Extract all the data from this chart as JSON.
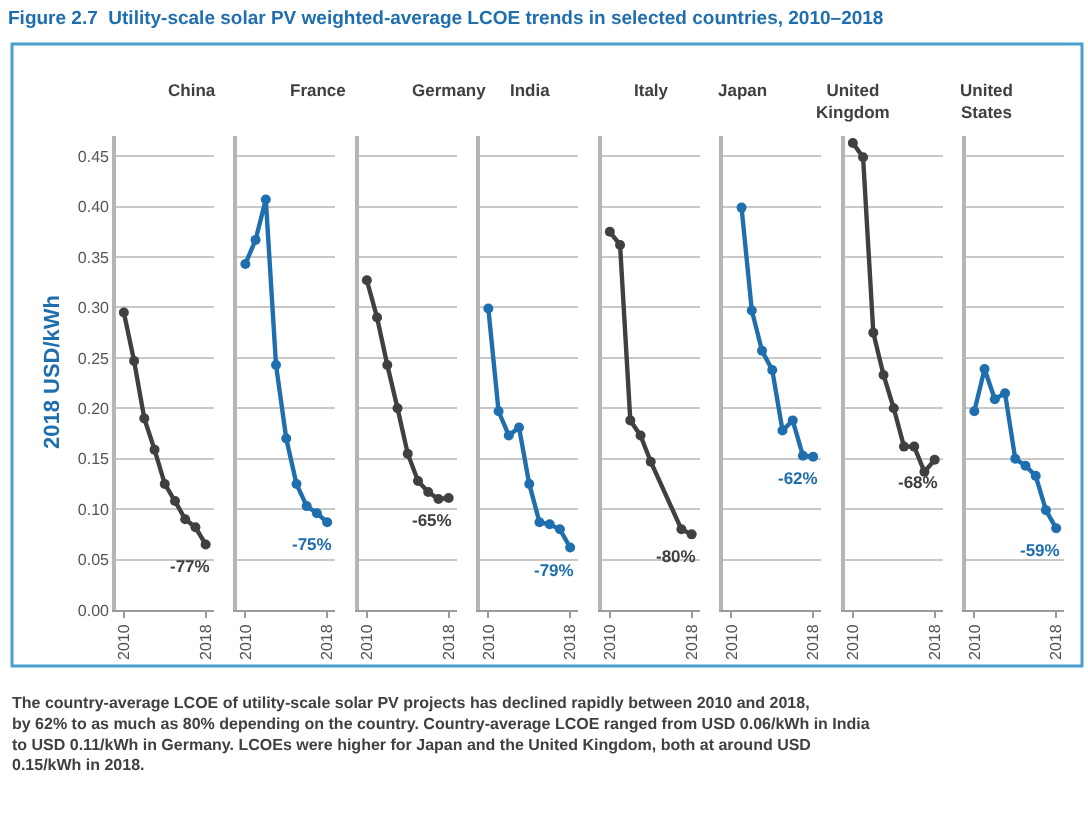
{
  "chart_data": [
    {
      "type": "line",
      "title": "China",
      "ylabel": "2018 USD/kWh",
      "x": [
        2010,
        2011,
        2012,
        2013,
        2014,
        2015,
        2016,
        2017,
        2018
      ],
      "xlim": [
        2009.2,
        2018.8
      ],
      "xticks": [
        2010,
        2018
      ],
      "ylim": [
        0,
        0.47
      ],
      "yticks": [
        {
          "value": 0,
          "label": "0.00"
        },
        {
          "value": 0.05,
          "label": "0.05"
        },
        {
          "value": 0.1,
          "label": "0.10"
        },
        {
          "value": 0.15,
          "label": "0.15"
        },
        {
          "value": 0.2,
          "label": "0.20"
        },
        {
          "value": 0.25,
          "label": "0.25"
        },
        {
          "value": 0.3,
          "label": "0.30"
        },
        {
          "value": 0.35,
          "label": "0.35"
        },
        {
          "value": 0.4,
          "label": "0.40"
        },
        {
          "value": 0.45,
          "label": "0.45"
        }
      ],
      "grid": "y",
      "marker": "circle",
      "series": [
        {
          "color": "#404040",
          "values": [
            0.295,
            0.247,
            0.19,
            0.159,
            0.125,
            0.108,
            0.09,
            0.082,
            0.065
          ]
        }
      ],
      "annotations": [
        "Figure 2.7  Utility-scale solar PV weighted-average LCOE trends in selected countries, 2010–2018",
        "The country-average LCOE of utility-scale solar PV projects has declined rapidly between 2010 and 2018, by 62% to as much as 80% depending on the country. Country-average LCOE ranged from USD 0.06/kWh in India to USD 0.11/kWh in Germany. LCOEs were higher for Japan and the United Kingdom, both at around USD 0.15/kWh in 2018.",
        "-77%"
      ]
    },
    {
      "type": "line",
      "title": "France",
      "x": [
        2010,
        2011,
        2012,
        2013,
        2014,
        2015,
        2016,
        2017,
        2018
      ],
      "xlim": [
        2009.2,
        2018.8
      ],
      "xticks": [
        2010,
        2018
      ],
      "ylim": [
        0,
        0.47
      ],
      "yticks": [
        0,
        0.05,
        0.1,
        0.15,
        0.2,
        0.25,
        0.3,
        0.35,
        0.4,
        0.45
      ],
      "tick_labels": "x",
      "grid": "y",
      "marker": "circle",
      "series": [
        {
          "color": "#1f6fae",
          "values": [
            0.343,
            0.367,
            0.407,
            0.243,
            0.17,
            0.125,
            0.103,
            0.096,
            0.087
          ]
        }
      ],
      "annotations": [
        "-75%"
      ]
    },
    {
      "type": "line",
      "title": "Germany",
      "x": [
        2010,
        2011,
        2012,
        2013,
        2014,
        2015,
        2016,
        2017,
        2018
      ],
      "xlim": [
        2009.2,
        2018.8
      ],
      "xticks": [
        2010,
        2018
      ],
      "ylim": [
        0,
        0.47
      ],
      "yticks": [
        0,
        0.05,
        0.1,
        0.15,
        0.2,
        0.25,
        0.3,
        0.35,
        0.4,
        0.45
      ],
      "tick_labels": "x",
      "grid": "y",
      "marker": "circle",
      "series": [
        {
          "color": "#404040",
          "values": [
            0.327,
            0.29,
            0.243,
            0.2,
            0.155,
            0.128,
            0.117,
            0.11,
            0.111
          ]
        }
      ],
      "annotations": [
        "-65%"
      ]
    },
    {
      "type": "line",
      "title": "India",
      "x": [
        2010,
        2011,
        2012,
        2013,
        2014,
        2015,
        2016,
        2017,
        2018
      ],
      "xlim": [
        2009.2,
        2018.8
      ],
      "xticks": [
        2010,
        2018
      ],
      "ylim": [
        0,
        0.47
      ],
      "yticks": [
        0,
        0.05,
        0.1,
        0.15,
        0.2,
        0.25,
        0.3,
        0.35,
        0.4,
        0.45
      ],
      "tick_labels": "x",
      "grid": "y",
      "marker": "circle",
      "series": [
        {
          "color": "#1f6fae",
          "values": [
            0.299,
            0.197,
            0.173,
            0.181,
            0.125,
            0.087,
            0.085,
            0.08,
            0.062
          ]
        }
      ],
      "annotations": [
        "-79%"
      ]
    },
    {
      "type": "line",
      "title": "Italy",
      "x": [
        2010,
        2011,
        2012,
        2013,
        2014,
        2017,
        2018
      ],
      "xlim": [
        2009.2,
        2018.8
      ],
      "xticks": [
        2010,
        2018
      ],
      "ylim": [
        0,
        0.47
      ],
      "yticks": [
        0,
        0.05,
        0.1,
        0.15,
        0.2,
        0.25,
        0.3,
        0.35,
        0.4,
        0.45
      ],
      "tick_labels": "x",
      "grid": "y",
      "marker": "circle",
      "series": [
        {
          "color": "#404040",
          "values": [
            0.375,
            0.362,
            0.188,
            0.173,
            0.147,
            0.08,
            0.075
          ]
        }
      ],
      "annotations": [
        "-80%"
      ]
    },
    {
      "type": "line",
      "title": "Japan",
      "x": [
        2011,
        2012,
        2013,
        2014,
        2015,
        2016,
        2017,
        2018
      ],
      "xlim": [
        2009.2,
        2018.8
      ],
      "xticks": [
        2010,
        2018
      ],
      "ylim": [
        0,
        0.47
      ],
      "yticks": [
        0,
        0.05,
        0.1,
        0.15,
        0.2,
        0.25,
        0.3,
        0.35,
        0.4,
        0.45
      ],
      "tick_labels": "x",
      "grid": "y",
      "marker": "circle",
      "series": [
        {
          "color": "#1f6fae",
          "values": [
            0.399,
            0.297,
            0.257,
            0.238,
            0.178,
            0.188,
            0.153,
            0.152
          ]
        }
      ],
      "annotations": [
        "-62%"
      ]
    },
    {
      "type": "line",
      "title": "United Kingdom",
      "x": [
        2010,
        2011,
        2012,
        2013,
        2014,
        2015,
        2016,
        2017,
        2018
      ],
      "xlim": [
        2009.2,
        2018.8
      ],
      "xticks": [
        2010,
        2018
      ],
      "ylim": [
        0,
        0.47
      ],
      "yticks": [
        0,
        0.05,
        0.1,
        0.15,
        0.2,
        0.25,
        0.3,
        0.35,
        0.4,
        0.45
      ],
      "tick_labels": "x",
      "grid": "y",
      "marker": "circle",
      "series": [
        {
          "color": "#404040",
          "values": [
            0.463,
            0.449,
            0.275,
            0.233,
            0.2,
            0.162,
            0.162,
            0.137,
            0.149
          ]
        }
      ],
      "annotations": [
        "-68%"
      ]
    },
    {
      "type": "line",
      "title": "United States",
      "x": [
        2010,
        2011,
        2012,
        2013,
        2014,
        2015,
        2016,
        2017,
        2018
      ],
      "xlim": [
        2009.2,
        2018.8
      ],
      "xticks": [
        2010,
        2018
      ],
      "ylim": [
        0,
        0.47
      ],
      "yticks": [
        0,
        0.05,
        0.1,
        0.15,
        0.2,
        0.25,
        0.3,
        0.35,
        0.4,
        0.45
      ],
      "tick_labels": "x",
      "grid": "y",
      "marker": "circle",
      "series": [
        {
          "color": "#1f6fae",
          "values": [
            0.197,
            0.239,
            0.209,
            0.215,
            0.15,
            0.143,
            0.133,
            0.099,
            0.081
          ]
        }
      ],
      "annotations": [
        "-59%"
      ]
    }
  ]
}
